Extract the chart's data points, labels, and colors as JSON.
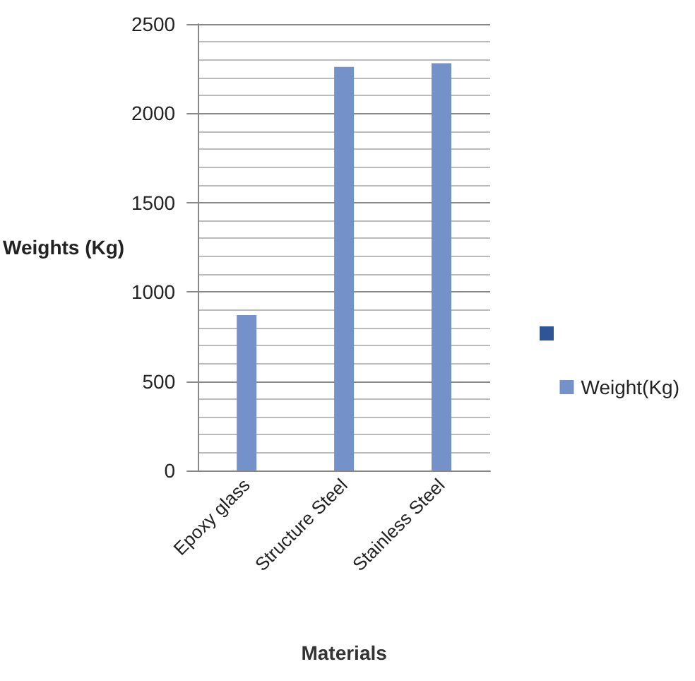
{
  "chart_data": {
    "type": "bar",
    "xlabel": "Materials",
    "ylabel": "Weights (Kg)",
    "categories": [
      "Epoxy glass",
      "Structure Steel",
      "Stainless Steel"
    ],
    "series": [
      {
        "name": "Weight(Kg)",
        "color": "#7491c9",
        "values": [
          870,
          2260,
          2280
        ]
      }
    ],
    "ylim": [
      0,
      2500
    ],
    "yticks": [
      0,
      500,
      1000,
      1500,
      2000,
      2500
    ],
    "grid": "y",
    "legend": "right"
  }
}
